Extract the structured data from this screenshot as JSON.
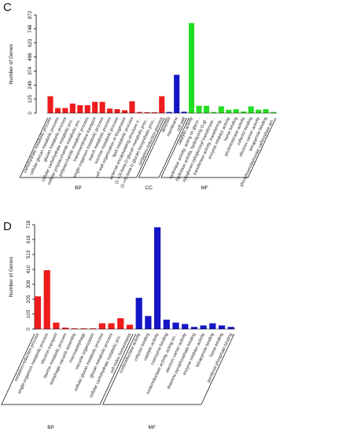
{
  "colors": {
    "BP": "#ee1c1c",
    "CC": "#1515c8",
    "MF": "#22dd22",
    "axis": "#000000"
  },
  "chart_data": [
    {
      "panel": "C",
      "type": "bar",
      "ylabel": "Number of Genes",
      "yticks_left": [
        "0",
        "125",
        "249",
        "374",
        "498",
        "623",
        "748",
        "872"
      ],
      "ylim": [
        0,
        872
      ],
      "groups": [
        {
          "name": "BP",
          "color": "#ee1c1c",
          "categories": [
            "carbohydrate metabolic process",
            "cellular glucan metabolic process",
            "glucan metabolic process",
            "cellular carbohydrate metabolic pro...",
            "cellular polysaccharide metabolic pro...",
            "polysaccharide metabolic process",
            "transmembrane transport",
            "single-organism metabolic process",
            "starch metabolic process",
            "sucrose metabolic process",
            "cell wall organization or biogenesis",
            "lipid metabolic process",
            "external encapsulating structure o...",
            "(1->3)-beta-D-glucan metabolic proc...",
            "(1->4)-beta-D-glucan biosynthetic proc...",
            "oxidation-reduction process"
          ],
          "values": [
            150,
            45,
            45,
            85,
            70,
            70,
            100,
            100,
            40,
            35,
            25,
            105,
            10,
            8,
            8,
            150
          ]
        },
        {
          "name": "CC",
          "color": "#1515c8",
          "categories": [
            "apoplast",
            "membrane",
            "cell wall"
          ],
          "values": [
            10,
            340,
            12
          ]
        },
        {
          "name": "MF",
          "color": "#22dd22",
          "categories": [
            "catalytic activity",
            "hydrolase activity, acting on glyco...",
            "hydrolase activity, hydrolyzing O-gl...",
            "xyloglucan:xyloglucosyl transferase...",
            "transferase activity, transferring...",
            "enzyme inhibitor activity",
            "heme binding",
            "pectinesterase activity",
            "cofactor binding",
            "electron carrier activity",
            "tetrapyrrole binding",
            "phosphoenolpyruvate carboxylase act..."
          ],
          "values": [
            800,
            65,
            65,
            10,
            60,
            30,
            35,
            15,
            60,
            30,
            35,
            10
          ]
        }
      ]
    },
    {
      "panel": "D",
      "type": "bar",
      "ylabel": "Number of Genes",
      "yticks_left": [
        "0",
        "103",
        "205",
        "308",
        "410",
        "513",
        "616",
        "718"
      ],
      "ylim": [
        0,
        718
      ],
      "groups": [
        {
          "name": "BP",
          "color": "#ee1c1c",
          "categories": [
            "oxidation-reduction process",
            "single-organism metabolic process",
            "electron transport",
            "taurine metabolic process",
            "autophagic vacuole assembly",
            "macroautophagy",
            "vacuole organization",
            "cellular glucan metabolic process",
            "glucan metabolic process",
            "cellular carbohydrate metabolic pro...",
            "cell redox homeostasis"
          ],
          "values": [
            225,
            405,
            45,
            10,
            5,
            5,
            5,
            40,
            40,
            75,
            30
          ]
        },
        {
          "name": "MF",
          "color": "#1515c8",
          "categories": [
            "oxidoreductase activity",
            "cofactor binding",
            "catalytic activity",
            "coenzyme binding",
            "oxidoreductase activity, acting on...",
            "electron carrier activity",
            "thiamine pyrophosphate binding",
            "enzyme inhibitor activity",
            "tetrapyrrole binding",
            "heme binding",
            "pyridoxal phosphate binding"
          ],
          "values": [
            215,
            90,
            700,
            65,
            45,
            35,
            15,
            25,
            40,
            25,
            15
          ]
        }
      ]
    }
  ]
}
